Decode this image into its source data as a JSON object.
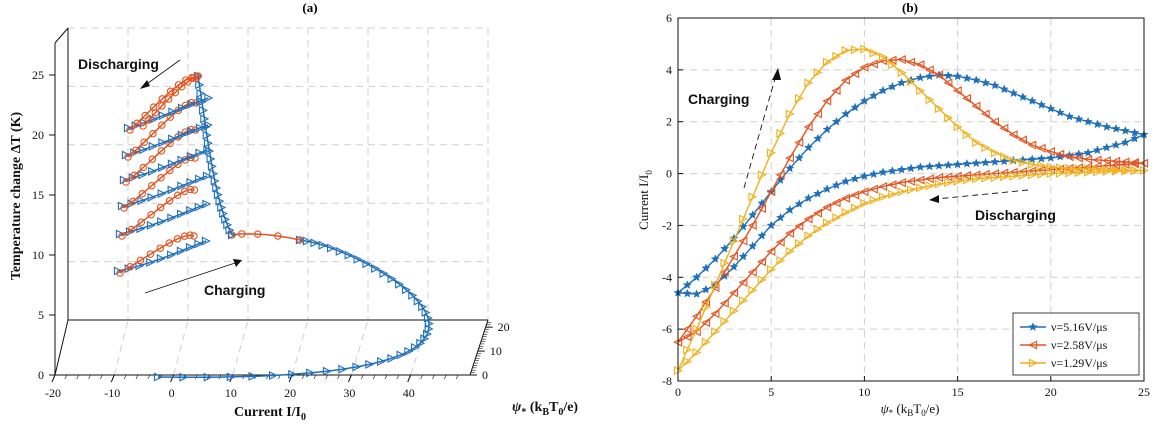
{
  "colors": {
    "blue": "#1f6fba",
    "orange": "#e4531f",
    "yellow": "#f0b11a",
    "grid": "#cfcfcf"
  },
  "chart_data": [
    {
      "type": "line",
      "title": "(a)",
      "xlabel": "Current I/I0",
      "ylabel": "ψ* (kBT0/e)",
      "zlabel": "Temperature change ΔT (K)",
      "x_ticks": [
        "-20",
        "-10",
        "0",
        "10",
        "20",
        "30",
        "40"
      ],
      "y_ticks": [
        "0",
        "10",
        "20"
      ],
      "z_ticks": [
        "0",
        "5",
        "10",
        "15",
        "20",
        "25"
      ],
      "annotations": [
        "Discharging",
        "Charging"
      ],
      "series": [
        {
          "color": "#1f6fba",
          "marker": "triangle-right"
        },
        {
          "color": "#e4531f",
          "marker": "circle"
        }
      ]
    },
    {
      "type": "line",
      "title": "(b)",
      "xlabel": "ψ* (kBT0/e)",
      "ylabel": "Current I/I0",
      "xlim": [
        0,
        25
      ],
      "ylim": [
        -8,
        6
      ],
      "x_ticks": [
        0,
        5,
        10,
        15,
        20,
        25
      ],
      "y_ticks": [
        -8,
        -6,
        -4,
        -2,
        0,
        2,
        4,
        6
      ],
      "grid": true,
      "legend_position": "bottom-right",
      "annotations": [
        "Charging",
        "Discharging"
      ],
      "series": [
        {
          "name": "ν=5.16V/μs",
          "color": "#1f6fba",
          "marker": "star",
          "charging": {
            "x": [
              0,
              1,
              2,
              3,
              4,
              5,
              6,
              7,
              8,
              9,
              10,
              11,
              12,
              13,
              14,
              15,
              16,
              17,
              18,
              19,
              20,
              21,
              22,
              23,
              24,
              25
            ],
            "y": [
              -4.6,
              -4.0,
              -3.3,
              -2.5,
              -1.6,
              -0.7,
              0.2,
              1.0,
              1.7,
              2.3,
              2.8,
              3.2,
              3.5,
              3.7,
              3.8,
              3.75,
              3.6,
              3.4,
              3.1,
              2.8,
              2.5,
              2.2,
              2.0,
              1.8,
              1.65,
              1.5
            ]
          },
          "discharging": {
            "x": [
              25,
              24,
              23,
              22,
              21,
              20,
              19,
              18,
              17,
              16,
              15,
              14,
              13,
              12,
              11,
              10,
              9,
              8,
              7,
              6,
              5,
              4,
              3,
              2,
              1,
              0
            ],
            "y": [
              1.5,
              1.2,
              1.0,
              0.8,
              0.7,
              0.6,
              0.55,
              0.5,
              0.45,
              0.4,
              0.35,
              0.3,
              0.25,
              0.15,
              0.05,
              -0.1,
              -0.3,
              -0.6,
              -0.95,
              -1.4,
              -2.0,
              -2.8,
              -3.6,
              -4.3,
              -4.65,
              -4.6
            ]
          }
        },
        {
          "name": "ν=2.58V/μs",
          "color": "#e4531f",
          "marker": "triangle-left",
          "charging": {
            "x": [
              0,
              1,
              2,
              3,
              4,
              5,
              6,
              7,
              8,
              9,
              10,
              11,
              12,
              13,
              14,
              15,
              16,
              17,
              18,
              19,
              20,
              21,
              22,
              23,
              24,
              25
            ],
            "y": [
              -6.5,
              -5.5,
              -4.4,
              -3.2,
              -2.0,
              -0.7,
              0.6,
              1.8,
              2.8,
              3.6,
              4.1,
              4.35,
              4.4,
              4.2,
              3.8,
              3.2,
              2.6,
              2.0,
              1.5,
              1.1,
              0.85,
              0.65,
              0.55,
              0.5,
              0.45,
              0.4
            ]
          },
          "discharging": {
            "x": [
              25,
              24,
              23,
              22,
              21,
              20,
              19,
              18,
              17,
              16,
              15,
              14,
              13,
              12,
              11,
              10,
              9,
              8,
              7,
              6,
              5,
              4,
              3,
              2,
              1,
              0
            ],
            "y": [
              0.4,
              0.35,
              0.3,
              0.25,
              0.2,
              0.15,
              0.1,
              0.05,
              0.0,
              -0.05,
              -0.1,
              -0.15,
              -0.25,
              -0.35,
              -0.5,
              -0.7,
              -0.95,
              -1.3,
              -1.75,
              -2.3,
              -3.0,
              -3.8,
              -4.6,
              -5.4,
              -6.1,
              -6.5
            ]
          }
        },
        {
          "name": "ν=1.29V/μs",
          "color": "#f0b11a",
          "marker": "triangle-right",
          "charging": {
            "x": [
              0,
              1,
              2,
              3,
              4,
              5,
              6,
              7,
              8,
              9,
              10,
              11,
              12,
              13,
              14,
              15,
              16,
              17,
              18,
              19,
              20,
              21,
              22,
              23,
              24,
              25
            ],
            "y": [
              -7.6,
              -6.0,
              -4.3,
              -2.6,
              -0.9,
              0.8,
              2.3,
              3.5,
              4.3,
              4.75,
              4.8,
              4.5,
              3.9,
              3.2,
              2.5,
              1.8,
              1.2,
              0.8,
              0.5,
              0.35,
              0.25,
              0.2,
              0.17,
              0.15,
              0.13,
              0.12
            ]
          },
          "discharging": {
            "x": [
              25,
              24,
              23,
              22,
              21,
              20,
              19,
              18,
              17,
              16,
              15,
              14,
              13,
              12,
              11,
              10,
              9,
              8,
              7,
              6,
              5,
              4,
              3,
              2,
              1,
              0
            ],
            "y": [
              0.12,
              0.1,
              0.08,
              0.05,
              0.02,
              0.0,
              -0.05,
              -0.1,
              -0.15,
              -0.2,
              -0.3,
              -0.4,
              -0.55,
              -0.7,
              -0.9,
              -1.15,
              -1.5,
              -1.9,
              -2.4,
              -3.0,
              -3.7,
              -4.5,
              -5.3,
              -6.1,
              -6.9,
              -7.6
            ]
          }
        }
      ]
    }
  ]
}
